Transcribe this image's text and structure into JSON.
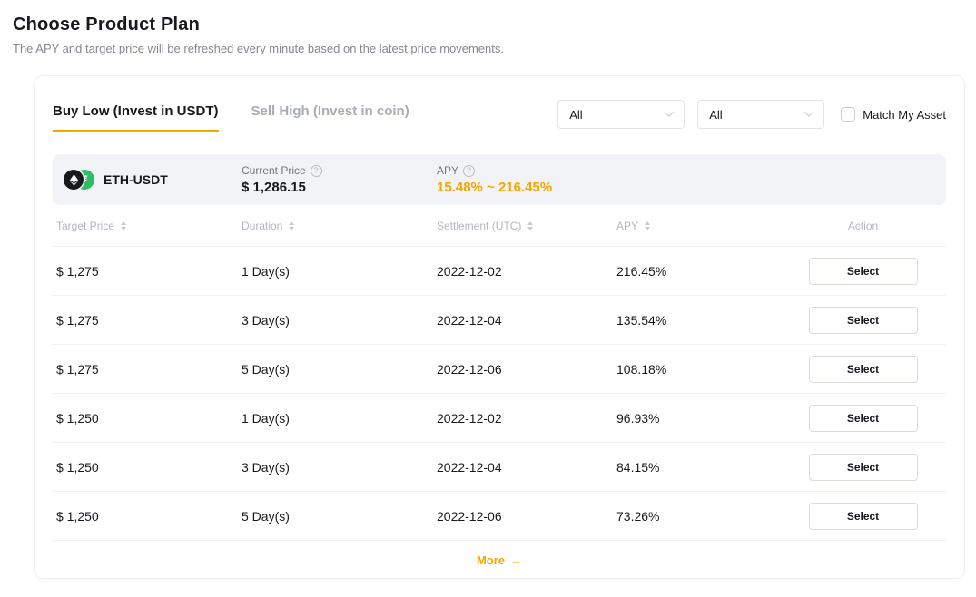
{
  "page": {
    "title": "Choose Product Plan",
    "subtitle": "The APY and target price will be refreshed every minute based on the latest price movements."
  },
  "tabs": [
    {
      "label": "Buy Low (Invest in USDT)",
      "active": true
    },
    {
      "label": "Sell High (Invest in coin)",
      "active": false
    }
  ],
  "filters": {
    "dropdown_coin": {
      "value": "All"
    },
    "dropdown_duration": {
      "value": "All"
    },
    "checkbox_label": "Match My Asset",
    "checked": false
  },
  "product": {
    "pair": "ETH-USDT",
    "usdt_symbol": "₮",
    "current_price_label": "Current Price",
    "current_price": "$ 1,286.15",
    "apy_label": "APY",
    "apy_range": "15.48% ~ 216.45%"
  },
  "table": {
    "headers": [
      {
        "label": "Target Price",
        "sortable": true
      },
      {
        "label": "Duration",
        "sortable": true
      },
      {
        "label": "Settlement (UTC)",
        "sortable": true
      },
      {
        "label": "APY",
        "sortable": true
      },
      {
        "label": "Action",
        "sortable": false
      }
    ],
    "rows": [
      {
        "target_price": "$ 1,275",
        "duration": "1 Day(s)",
        "settlement": "2022-12-02",
        "apy": "216.45%",
        "action": "Select"
      },
      {
        "target_price": "$ 1,275",
        "duration": "3 Day(s)",
        "settlement": "2022-12-04",
        "apy": "135.54%",
        "action": "Select"
      },
      {
        "target_price": "$ 1,275",
        "duration": "5 Day(s)",
        "settlement": "2022-12-06",
        "apy": "108.18%",
        "action": "Select"
      },
      {
        "target_price": "$ 1,250",
        "duration": "1 Day(s)",
        "settlement": "2022-12-02",
        "apy": "96.93%",
        "action": "Select"
      },
      {
        "target_price": "$ 1,250",
        "duration": "3 Day(s)",
        "settlement": "2022-12-04",
        "apy": "84.15%",
        "action": "Select"
      },
      {
        "target_price": "$ 1,250",
        "duration": "5 Day(s)",
        "settlement": "2022-12-06",
        "apy": "73.26%",
        "action": "Select"
      }
    ],
    "more_label": "More",
    "more_arrow": "→"
  },
  "colors": {
    "accent": "#F7A600",
    "eth_black": "#17181D",
    "usdt_green": "#2EBD64",
    "text_primary": "#17181E",
    "text_muted": "#84888F",
    "strip_bg": "#F2F3F7"
  }
}
